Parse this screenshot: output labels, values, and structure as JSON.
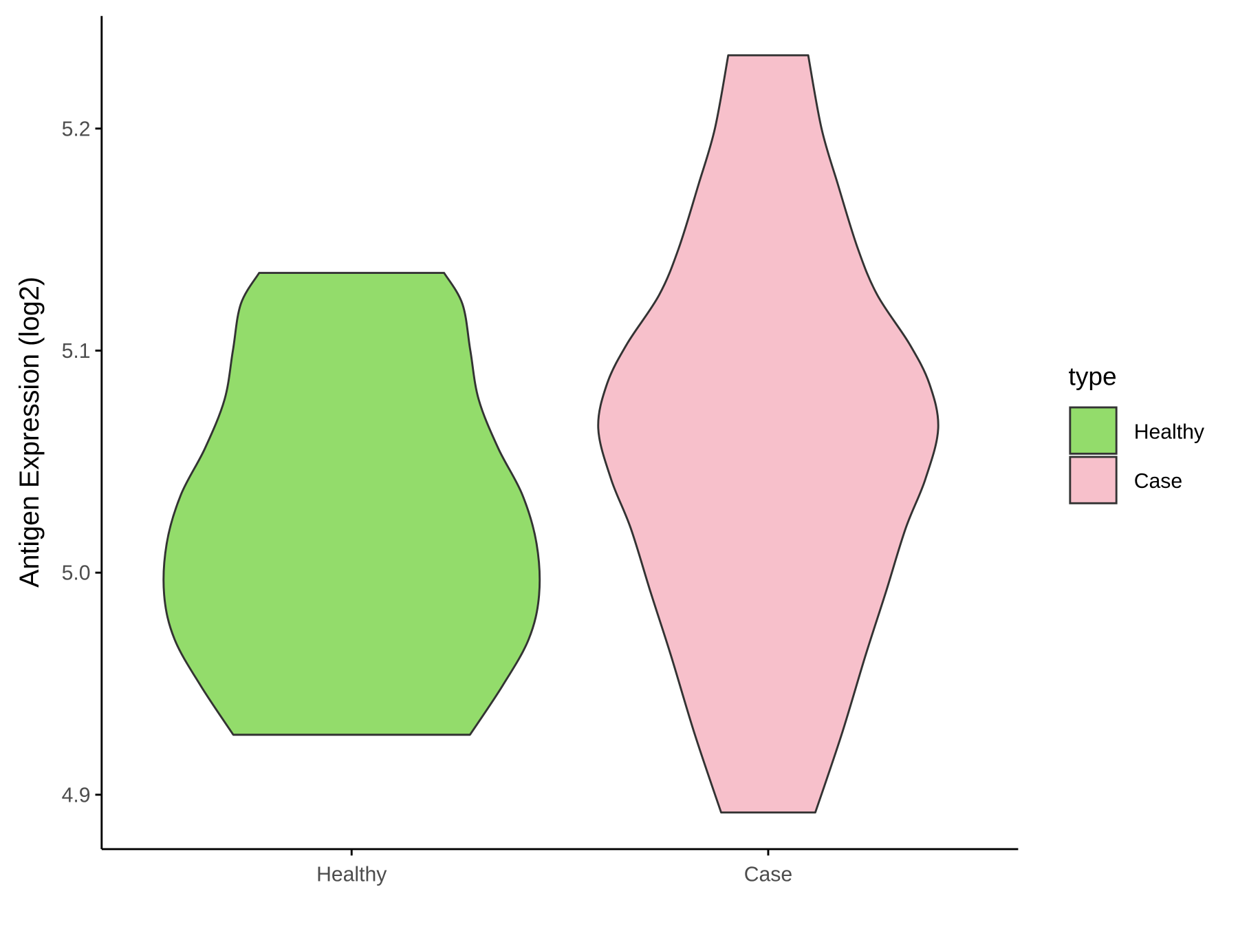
{
  "chart_data": {
    "type": "violin",
    "y_label": "Antigen Expression (log2)",
    "categories": [
      "Healthy",
      "Case"
    ],
    "ylim": [
      4.8755,
      5.2507
    ],
    "yticks": [
      4.9,
      {
        "value": 5,
        "label": "5.0"
      },
      5.1,
      5.2
    ],
    "legend_title": "type",
    "legend_position": "right",
    "series": [
      {
        "name": "Healthy",
        "color": "#93dc6b",
        "y": [
          5.135,
          5.121,
          5.1,
          5.078,
          5.056,
          5.035,
          5.013,
          4.99,
          4.97,
          4.949,
          4.927
        ],
        "half_width": [
          0.222,
          0.266,
          0.285,
          0.305,
          0.352,
          0.41,
          0.444,
          0.45,
          0.425,
          0.362,
          0.284
        ]
      },
      {
        "name": "Case",
        "color": "#f7c0cb",
        "y": [
          5.233,
          5.2,
          5.175,
          5.146,
          5.125,
          5.103,
          5.085,
          5.065,
          5.042,
          5.02,
          4.991,
          4.963,
          4.927,
          4.892
        ],
        "half_width": [
          0.096,
          0.128,
          0.167,
          0.215,
          0.262,
          0.339,
          0.387,
          0.408,
          0.377,
          0.33,
          0.282,
          0.234,
          0.176,
          0.113
        ]
      }
    ]
  }
}
